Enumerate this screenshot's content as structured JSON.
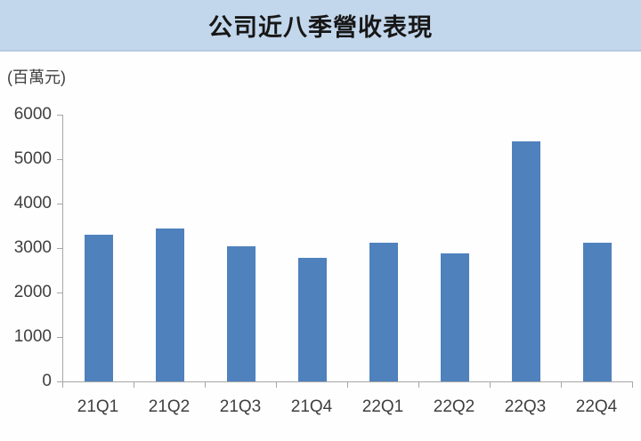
{
  "chart_data": {
    "type": "bar",
    "title": "公司近八季營收表現",
    "ylabel": "(百萬元)",
    "xlabel": "",
    "categories": [
      "21Q1",
      "21Q2",
      "21Q3",
      "21Q4",
      "22Q1",
      "22Q2",
      "22Q3",
      "22Q4"
    ],
    "values": [
      3300,
      3430,
      3030,
      2780,
      3130,
      2880,
      5390,
      3130
    ],
    "ylim": [
      0,
      6000
    ],
    "ytick_step": 1000,
    "yticks": [
      0,
      1000,
      2000,
      3000,
      4000,
      5000,
      6000
    ],
    "grid": false,
    "legend_position": "none",
    "colors": {
      "bar": "#4f81bd",
      "banner_bg": "#c3d7ec",
      "axis": "#a6a6a6",
      "tick_text": "#3f3f3f",
      "title_text": "#171717",
      "background": "#fefefe"
    }
  }
}
